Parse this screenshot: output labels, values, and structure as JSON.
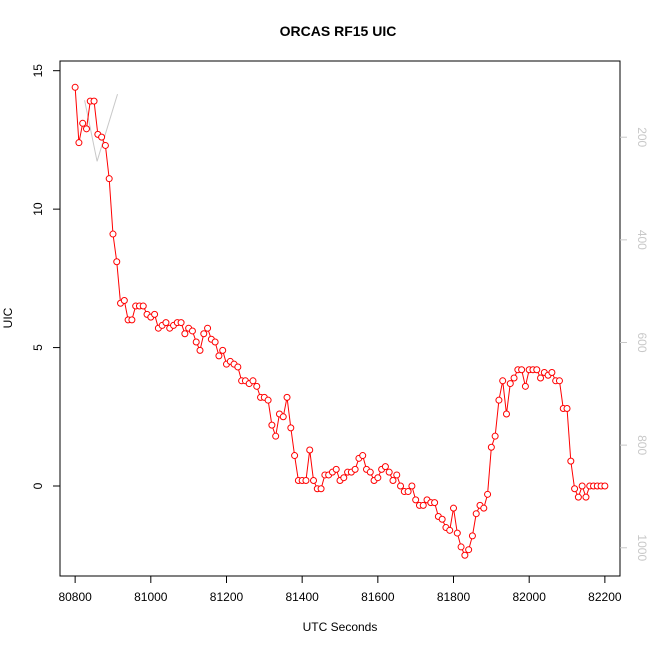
{
  "chart_data": {
    "type": "line",
    "title": "ORCAS RF15 UIC",
    "xlabel": "UTC Seconds",
    "ylabel": "UIC",
    "xlim": [
      80760,
      82240
    ],
    "ylim": [
      -3.25,
      15.35
    ],
    "x_ticks": [
      80800,
      81000,
      81200,
      81400,
      81600,
      81800,
      82000,
      82200
    ],
    "y_ticks": [
      0,
      5,
      10,
      15
    ],
    "y2_ticks": [
      200,
      400,
      600,
      800,
      1000
    ],
    "y2lim": [
      51.5,
      1055
    ],
    "series_color": "#ff0000",
    "series2_color": "#c8c8c8",
    "series": [
      {
        "x": [
          80800,
          80810,
          80820,
          80830,
          80840,
          80850,
          80860,
          80870,
          80880,
          80890,
          80900,
          80910,
          80920,
          80930,
          80940,
          80950,
          80960,
          80970,
          80980,
          80990,
          81000,
          81010,
          81020,
          81030,
          81040,
          81050,
          81060,
          81070,
          81080,
          81090,
          81100,
          81110,
          81120,
          81130,
          81140,
          81150,
          81160,
          81170,
          81180,
          81190,
          81200,
          81210,
          81220,
          81230,
          81240,
          81250,
          81260,
          81270,
          81280,
          81290,
          81300,
          81310,
          81320,
          81330,
          81340,
          81350,
          81360,
          81370,
          81380,
          81390,
          81400,
          81410,
          81420,
          81430,
          81440,
          81450,
          81460,
          81470,
          81480,
          81490,
          81500,
          81510,
          81520,
          81530,
          81540,
          81550,
          81560,
          81570,
          81580,
          81590,
          81600,
          81610,
          81620,
          81630,
          81640,
          81650,
          81660,
          81670,
          81680,
          81690,
          81700,
          81710,
          81720,
          81730,
          81740,
          81750,
          81760,
          81770,
          81780,
          81790,
          81800,
          81810,
          81820,
          81830,
          81840,
          81850,
          81860,
          81870,
          81880,
          81890,
          81900,
          81910,
          81920,
          81930,
          81940,
          81950,
          81960,
          81970,
          81980,
          81990,
          82000,
          82010,
          82020,
          82030,
          82040,
          82050,
          82060,
          82070,
          82080,
          82090,
          82100,
          82110,
          82120,
          82130,
          82140,
          82150,
          82160,
          82170,
          82180,
          82190,
          82200
        ],
        "y": [
          14.4,
          12.4,
          13.1,
          12.9,
          13.9,
          13.9,
          12.7,
          12.6,
          12.3,
          11.1,
          9.1,
          8.1,
          6.6,
          6.7,
          6.0,
          6.0,
          6.5,
          6.5,
          6.5,
          6.2,
          6.1,
          6.2,
          5.7,
          5.8,
          5.9,
          5.7,
          5.8,
          5.9,
          5.9,
          5.5,
          5.7,
          5.6,
          5.2,
          4.9,
          5.5,
          5.7,
          5.3,
          5.2,
          4.7,
          4.9,
          4.4,
          4.5,
          4.4,
          4.3,
          3.8,
          3.8,
          3.7,
          3.8,
          3.6,
          3.2,
          3.2,
          3.1,
          2.2,
          1.8,
          2.6,
          2.5,
          3.2,
          2.1,
          1.1,
          0.2,
          0.2,
          0.2,
          1.3,
          0.2,
          -0.1,
          -0.1,
          0.4,
          0.4,
          0.5,
          0.6,
          0.2,
          0.3,
          0.5,
          0.5,
          0.6,
          1.0,
          1.1,
          0.6,
          0.5,
          0.2,
          0.3,
          0.6,
          0.7,
          0.5,
          0.2,
          0.4,
          0.0,
          -0.2,
          -0.2,
          0.0,
          -0.5,
          -0.7,
          -0.7,
          -0.5,
          -0.6,
          -0.6,
          -1.1,
          -1.2,
          -1.5,
          -1.6,
          -0.8,
          -1.7,
          -2.2,
          -2.5,
          -2.3,
          -1.8,
          -1.0,
          -0.7,
          -0.8,
          -0.3,
          1.4,
          1.8,
          3.1,
          3.8,
          2.6,
          3.7,
          3.9,
          4.2,
          4.2,
          3.6,
          4.2,
          4.2,
          4.2,
          3.9,
          4.1,
          4.0,
          4.1,
          3.8,
          3.8,
          2.8,
          2.8,
          0.9,
          -0.1,
          -0.4,
          0.0,
          -0.4,
          0.0,
          0.0,
          0.0,
          0.0,
          0.0
        ]
      },
      {
        "x": [
          80825,
          80858,
          80912
        ],
        "y": [
          128,
          247,
          116
        ]
      }
    ]
  }
}
